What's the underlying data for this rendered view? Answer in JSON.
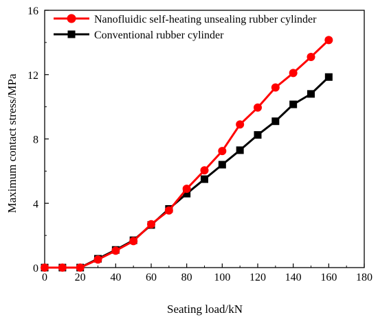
{
  "chart_data": {
    "type": "line",
    "title": "",
    "xlabel": "Seating load/kN",
    "ylabel": "Maximum contact stress/MPa",
    "xlim": [
      0,
      180
    ],
    "ylim": [
      0,
      16
    ],
    "xticks": [
      0,
      20,
      40,
      60,
      80,
      100,
      120,
      140,
      160,
      180
    ],
    "yticks": [
      0,
      4,
      8,
      12,
      16
    ],
    "grid": false,
    "legend_position": "top-right",
    "series": [
      {
        "name": "Nanofluidic self-heating unsealing rubber cylinder",
        "color": "#ff0000",
        "marker": "circle",
        "x": [
          0,
          10,
          20,
          30,
          40,
          50,
          60,
          70,
          80,
          90,
          100,
          110,
          120,
          130,
          140,
          150,
          160
        ],
        "y": [
          0.0,
          0.0,
          0.0,
          0.5,
          1.05,
          1.65,
          2.7,
          3.55,
          4.9,
          6.05,
          7.25,
          8.9,
          9.95,
          11.2,
          12.1,
          13.1,
          14.15
        ]
      },
      {
        "name": "Conventional rubber cylinder",
        "color": "#000000",
        "marker": "square",
        "x": [
          0,
          10,
          20,
          30,
          40,
          50,
          60,
          70,
          80,
          90,
          100,
          110,
          120,
          130,
          140,
          150,
          160
        ],
        "y": [
          0.0,
          0.0,
          0.0,
          0.55,
          1.1,
          1.7,
          2.65,
          3.65,
          4.6,
          5.5,
          6.4,
          7.3,
          8.25,
          9.1,
          10.15,
          10.8,
          11.85
        ]
      }
    ]
  }
}
